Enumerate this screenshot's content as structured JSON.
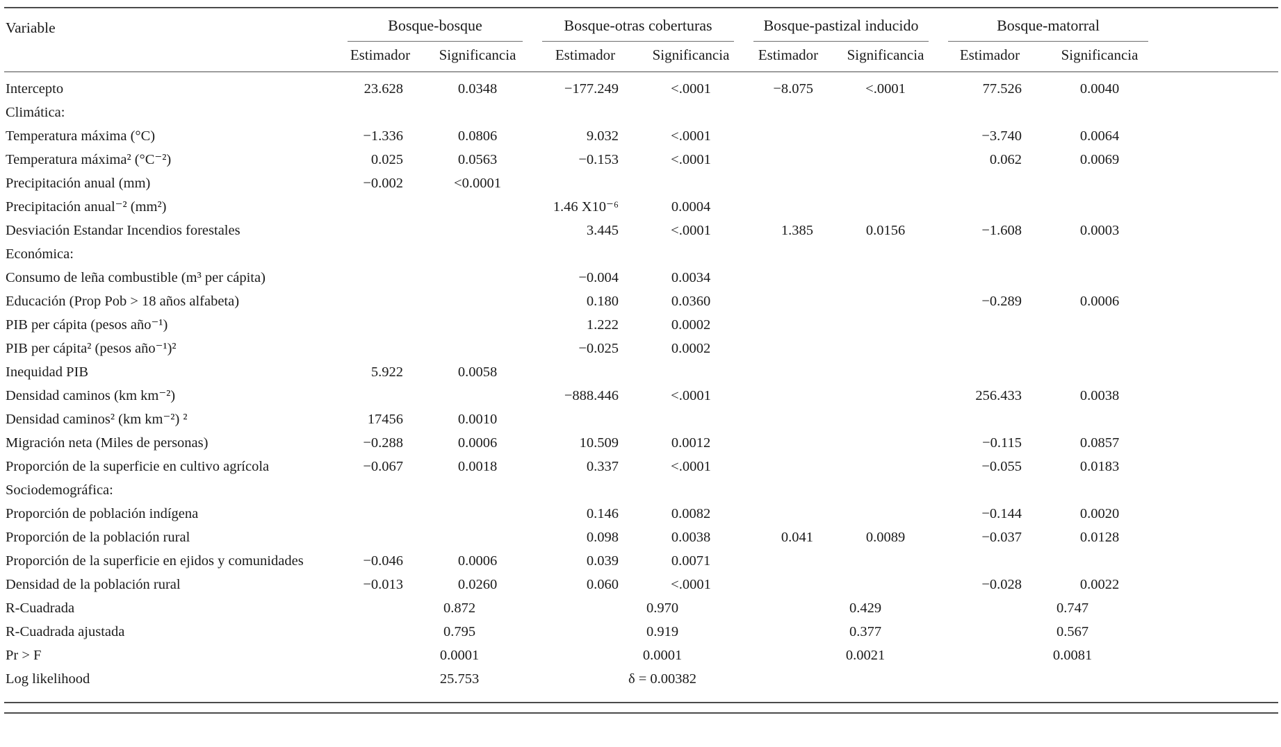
{
  "table": {
    "variable_header": "Variable",
    "groups": [
      {
        "label": "Bosque-bosque",
        "estimador_label": "Estimador",
        "significancia_label": "Significancia"
      },
      {
        "label": "Bosque-otras coberturas",
        "estimador_label": "Estimador",
        "significancia_label": "Significancia"
      },
      {
        "label": "Bosque-pastizal inducido",
        "estimador_label": "Estimador",
        "significancia_label": "Significancia"
      },
      {
        "label": "Bosque-matorral",
        "estimador_label": "Estimador",
        "significancia_label": "Significancia"
      }
    ],
    "rows": [
      {
        "type": "data",
        "label": "Intercepto",
        "cells": [
          "23.628",
          "0.0348",
          "−177.249",
          "<.0001",
          "−8.075",
          "<.0001",
          "77.526",
          "0.0040"
        ]
      },
      {
        "type": "section",
        "label": "Climática:",
        "cells": [
          "",
          "",
          "",
          "",
          "",
          "",
          "",
          ""
        ]
      },
      {
        "type": "data",
        "label": "Temperatura máxima (°C)",
        "cells": [
          "−1.336",
          "0.0806",
          "9.032",
          "<.0001",
          "",
          "",
          "−3.740",
          "0.0064"
        ]
      },
      {
        "type": "data",
        "label": "Temperatura máxima² (°C⁻²)",
        "cells": [
          "0.025",
          "0.0563",
          "−0.153",
          "<.0001",
          "",
          "",
          "0.062",
          "0.0069"
        ]
      },
      {
        "type": "data",
        "label": "Precipitación anual (mm)",
        "cells": [
          "−0.002",
          "<0.0001",
          "",
          "",
          "",
          "",
          "",
          ""
        ]
      },
      {
        "type": "data",
        "label": "Precipitación anual⁻² (mm²)",
        "cells": [
          "",
          "",
          "1.46 X10⁻⁶",
          "0.0004",
          "",
          "",
          "",
          ""
        ]
      },
      {
        "type": "data",
        "label": "Desviación Estandar Incendios forestales",
        "cells": [
          "",
          "",
          "3.445",
          "<.0001",
          "1.385",
          "0.0156",
          "−1.608",
          "0.0003"
        ]
      },
      {
        "type": "section",
        "label": "Económica:",
        "cells": [
          "",
          "",
          "",
          "",
          "",
          "",
          "",
          ""
        ]
      },
      {
        "type": "data",
        "label": "Consumo de leña combustible (m³ per cápita)",
        "cells": [
          "",
          "",
          "−0.004",
          "0.0034",
          "",
          "",
          "",
          ""
        ]
      },
      {
        "type": "data",
        "label": "Educación (Prop Pob > 18 años alfabeta)",
        "cells": [
          "",
          "",
          "0.180",
          "0.0360",
          "",
          "",
          "−0.289",
          "0.0006"
        ]
      },
      {
        "type": "data",
        "label": "PIB per cápita (pesos año⁻¹)",
        "cells": [
          "",
          "",
          "1.222",
          "0.0002",
          "",
          "",
          "",
          ""
        ]
      },
      {
        "type": "data",
        "label": "PIB per cápita² (pesos año⁻¹)²",
        "cells": [
          "",
          "",
          "−0.025",
          "0.0002",
          "",
          "",
          "",
          ""
        ]
      },
      {
        "type": "data",
        "label": "Inequidad PIB",
        "cells": [
          "5.922",
          "0.0058",
          "",
          "",
          "",
          "",
          "",
          ""
        ]
      },
      {
        "type": "data",
        "label": "Densidad caminos (km km⁻²)",
        "cells": [
          "",
          "",
          "−888.446",
          "<.0001",
          "",
          "",
          "256.433",
          "0.0038"
        ]
      },
      {
        "type": "data",
        "label": "Densidad caminos² (km km⁻²) ²",
        "cells": [
          "17456",
          "0.0010",
          "",
          "",
          "",
          "",
          "",
          ""
        ]
      },
      {
        "type": "data",
        "label": "Migración neta (Miles de personas)",
        "cells": [
          "−0.288",
          "0.0006",
          "10.509",
          "0.0012",
          "",
          "",
          "−0.115",
          "0.0857"
        ]
      },
      {
        "type": "data",
        "label": "Proporción de la superficie en cultivo agrícola",
        "cells": [
          "−0.067",
          "0.0018",
          "0.337",
          "<.0001",
          "",
          "",
          "−0.055",
          "0.0183"
        ]
      },
      {
        "type": "section",
        "label": "Sociodemográfica:",
        "cells": [
          "",
          "",
          "",
          "",
          "",
          "",
          "",
          ""
        ]
      },
      {
        "type": "data",
        "label": "Proporción de población indígena",
        "cells": [
          "",
          "",
          "0.146",
          "0.0082",
          "",
          "",
          "−0.144",
          "0.0020"
        ]
      },
      {
        "type": "data",
        "label": "Proporción de la población rural",
        "cells": [
          "",
          "",
          "0.098",
          "0.0038",
          "0.041",
          "0.0089",
          "−0.037",
          "0.0128"
        ]
      },
      {
        "type": "data",
        "label": "Proporción de la superficie en ejidos y comunidades",
        "cells": [
          "−0.046",
          "0.0006",
          "0.039",
          "0.0071",
          "",
          "",
          "",
          ""
        ]
      },
      {
        "type": "data",
        "label": "Densidad de la población rural",
        "cells": [
          "−0.013",
          "0.0260",
          "0.060",
          "<.0001",
          "",
          "",
          "−0.028",
          "0.0022"
        ]
      },
      {
        "type": "summary",
        "label": "R-Cuadrada",
        "values": [
          "0.872",
          "0.970",
          "0.429",
          "0.747"
        ]
      },
      {
        "type": "summary",
        "label": "R-Cuadrada ajustada",
        "values": [
          "0.795",
          "0.919",
          "0.377",
          "0.567"
        ]
      },
      {
        "type": "summary",
        "label": "Pr > F",
        "values": [
          "0.0001",
          "0.0001",
          "0.0021",
          "0.0081"
        ]
      },
      {
        "type": "summary",
        "label": "Log likelihood",
        "values": [
          "25.753",
          "δ = 0.00382",
          "",
          ""
        ]
      }
    ]
  }
}
